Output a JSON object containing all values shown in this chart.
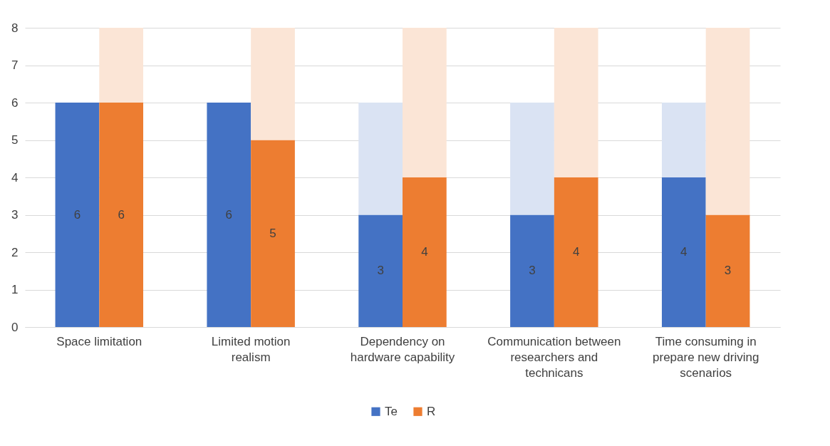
{
  "chart_data": {
    "type": "bar",
    "categories": [
      "Space limitation",
      "Limited motion realism",
      "Dependency on hardware capability",
      "Communication between researchers and technicans",
      "Time consuming in prepare new driving scenarios"
    ],
    "series": [
      {
        "name": "Te",
        "color": "#4472c4",
        "base": [
          0,
          0,
          0,
          0,
          0
        ],
        "values": [
          6,
          6,
          3,
          3,
          4
        ],
        "value_labels": [
          "6",
          "6",
          "3",
          "3",
          "4"
        ]
      },
      {
        "color": "#dae3f3",
        "base": [
          null,
          null,
          3,
          3,
          4
        ],
        "values": [
          null,
          null,
          3,
          3,
          2
        ]
      },
      {
        "name": "R",
        "color": "#ed7d31",
        "base": [
          0,
          0,
          0,
          0,
          0
        ],
        "values": [
          6,
          5,
          4,
          4,
          3
        ],
        "value_labels": [
          "6",
          "5",
          "4",
          "4",
          "3"
        ]
      },
      {
        "color": "#fbe5d6",
        "base": [
          6,
          5,
          4,
          4,
          3
        ],
        "values": [
          2,
          3,
          4,
          4,
          5
        ]
      }
    ],
    "ylim": [
      0,
      8
    ],
    "yticks": [
      0,
      1,
      2,
      3,
      4,
      5,
      6,
      7,
      8
    ],
    "grid": "y",
    "legend": "bottom"
  }
}
